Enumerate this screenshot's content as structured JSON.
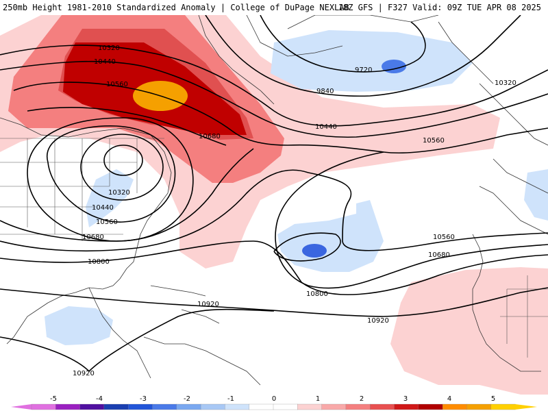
{
  "header": {
    "title_left": "250mb Height 1981-2010 Standardized Anomaly | College of DuPage NEXLAB",
    "title_right": "18Z GFS | F327 Valid: 09Z TUE APR 08 2025"
  },
  "contour_labels": [
    "10320",
    "10440",
    "10560",
    "10680",
    "9720",
    "9840",
    "10440",
    "10560",
    "10320",
    "10320",
    "10440",
    "10560",
    "10680",
    "10800",
    "10560",
    "10680",
    "10800",
    "10920",
    "10920",
    "10920"
  ],
  "colorbar": {
    "ticks": [
      "-5",
      "-4",
      "-3",
      "-2",
      "-1",
      "0",
      "1",
      "2",
      "3",
      "4",
      "5"
    ],
    "colors": {
      "m5": "#e070e0",
      "m45": "#9a20c0",
      "m4": "#5010a0",
      "m35": "#1a3fb0",
      "m3": "#2255d8",
      "m25": "#4a7ae8",
      "m2": "#7aa8f0",
      "m15": "#a8c8f5",
      "m1": "#cfe3fb",
      "zero_low": "#ffffff",
      "zero_high": "#ffffff",
      "p1": "#fcd2d2",
      "p15": "#f9a9a9",
      "p2": "#f47f7f",
      "p25": "#e85050",
      "p3": "#d01818",
      "p35": "#b00000",
      "p4": "#ff8c00",
      "p45": "#f5a000",
      "p5": "#ffd000"
    }
  }
}
